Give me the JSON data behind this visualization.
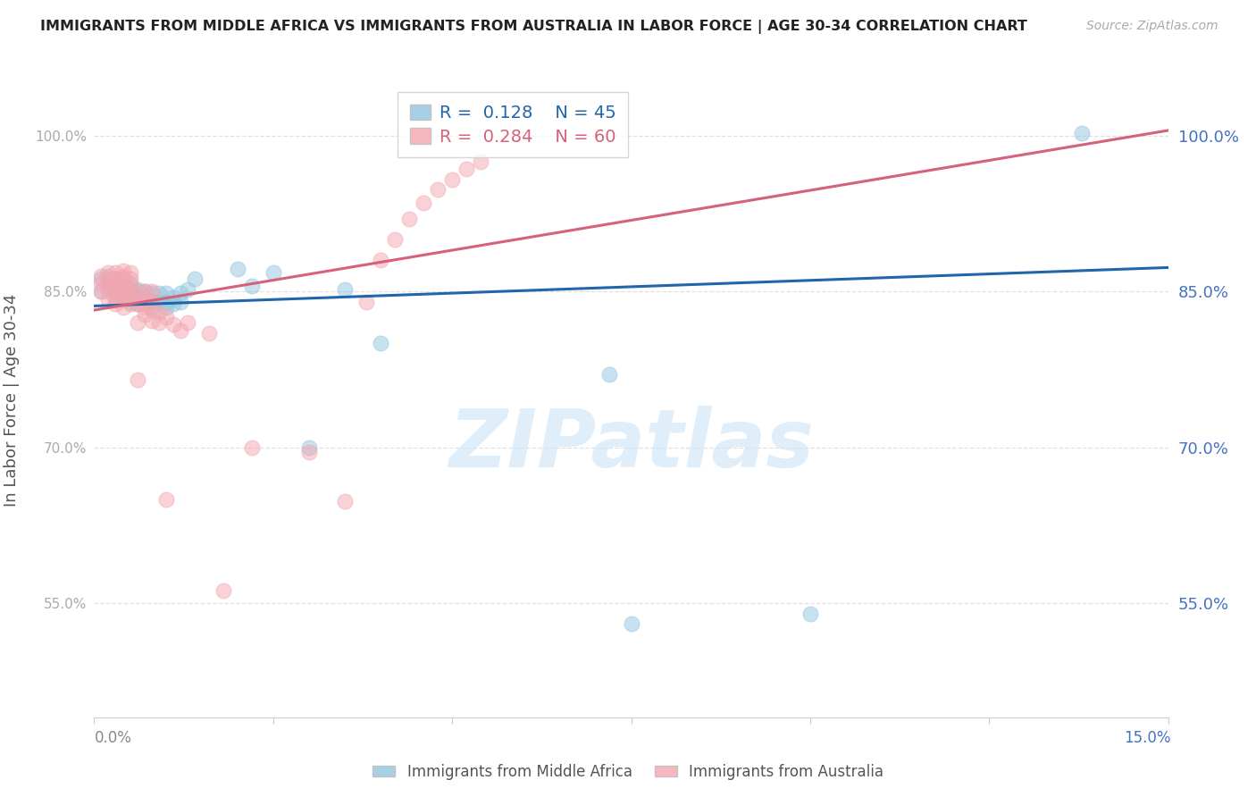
{
  "title": "IMMIGRANTS FROM MIDDLE AFRICA VS IMMIGRANTS FROM AUSTRALIA IN LABOR FORCE | AGE 30-34 CORRELATION CHART",
  "source": "Source: ZipAtlas.com",
  "ylabel": "In Labor Force | Age 30-34",
  "yticks": [
    55.0,
    70.0,
    85.0,
    100.0
  ],
  "xmin": 0.0,
  "xmax": 0.15,
  "ymin": 0.44,
  "ymax": 1.05,
  "legend_blue_r": "0.128",
  "legend_blue_n": "45",
  "legend_pink_r": "0.284",
  "legend_pink_n": "60",
  "legend_label_blue": "Immigrants from Middle Africa",
  "legend_label_pink": "Immigrants from Australia",
  "blue_color": "#92c5de",
  "pink_color": "#f4a6b0",
  "blue_line_color": "#2166ac",
  "pink_line_color": "#d6617a",
  "watermark_text": "ZIPatlas",
  "blue_scatter_x": [
    0.001,
    0.001,
    0.002,
    0.002,
    0.003,
    0.003,
    0.003,
    0.004,
    0.004,
    0.004,
    0.004,
    0.005,
    0.005,
    0.005,
    0.005,
    0.006,
    0.006,
    0.006,
    0.007,
    0.007,
    0.007,
    0.008,
    0.008,
    0.008,
    0.009,
    0.009,
    0.01,
    0.01,
    0.01,
    0.011,
    0.011,
    0.012,
    0.012,
    0.013,
    0.014,
    0.02,
    0.022,
    0.025,
    0.03,
    0.035,
    0.04,
    0.072,
    0.075,
    0.1,
    0.138
  ],
  "blue_scatter_y": [
    0.85,
    0.862,
    0.855,
    0.865,
    0.843,
    0.852,
    0.862,
    0.842,
    0.848,
    0.855,
    0.862,
    0.84,
    0.846,
    0.852,
    0.858,
    0.838,
    0.845,
    0.852,
    0.838,
    0.844,
    0.85,
    0.835,
    0.841,
    0.848,
    0.84,
    0.848,
    0.835,
    0.84,
    0.848,
    0.838,
    0.844,
    0.84,
    0.848,
    0.852,
    0.862,
    0.872,
    0.855,
    0.868,
    0.7,
    0.852,
    0.8,
    0.77,
    0.53,
    0.54,
    1.002
  ],
  "pink_scatter_x": [
    0.001,
    0.001,
    0.001,
    0.002,
    0.002,
    0.002,
    0.002,
    0.002,
    0.003,
    0.003,
    0.003,
    0.003,
    0.003,
    0.003,
    0.004,
    0.004,
    0.004,
    0.004,
    0.004,
    0.004,
    0.004,
    0.005,
    0.005,
    0.005,
    0.005,
    0.005,
    0.005,
    0.006,
    0.006,
    0.006,
    0.006,
    0.007,
    0.007,
    0.007,
    0.007,
    0.008,
    0.008,
    0.008,
    0.008,
    0.009,
    0.009,
    0.01,
    0.01,
    0.011,
    0.012,
    0.013,
    0.016,
    0.018,
    0.022,
    0.03,
    0.035,
    0.038,
    0.04,
    0.042,
    0.044,
    0.046,
    0.048,
    0.05,
    0.052,
    0.054
  ],
  "pink_scatter_y": [
    0.85,
    0.858,
    0.865,
    0.842,
    0.85,
    0.856,
    0.862,
    0.868,
    0.838,
    0.845,
    0.85,
    0.856,
    0.862,
    0.868,
    0.835,
    0.842,
    0.848,
    0.854,
    0.86,
    0.865,
    0.87,
    0.838,
    0.844,
    0.85,
    0.856,
    0.862,
    0.868,
    0.765,
    0.82,
    0.838,
    0.85,
    0.828,
    0.835,
    0.842,
    0.85,
    0.822,
    0.832,
    0.84,
    0.85,
    0.82,
    0.83,
    0.65,
    0.825,
    0.818,
    0.812,
    0.82,
    0.81,
    0.562,
    0.7,
    0.695,
    0.648,
    0.84,
    0.88,
    0.9,
    0.92,
    0.935,
    0.948,
    0.958,
    0.968,
    0.975
  ],
  "blue_trendline_x0": 0.0,
  "blue_trendline_x1": 0.15,
  "blue_trendline_y0": 0.836,
  "blue_trendline_y1": 0.873,
  "pink_trendline_x0": 0.0,
  "pink_trendline_x1": 0.15,
  "pink_trendline_y0": 0.832,
  "pink_trendline_y1": 1.005
}
